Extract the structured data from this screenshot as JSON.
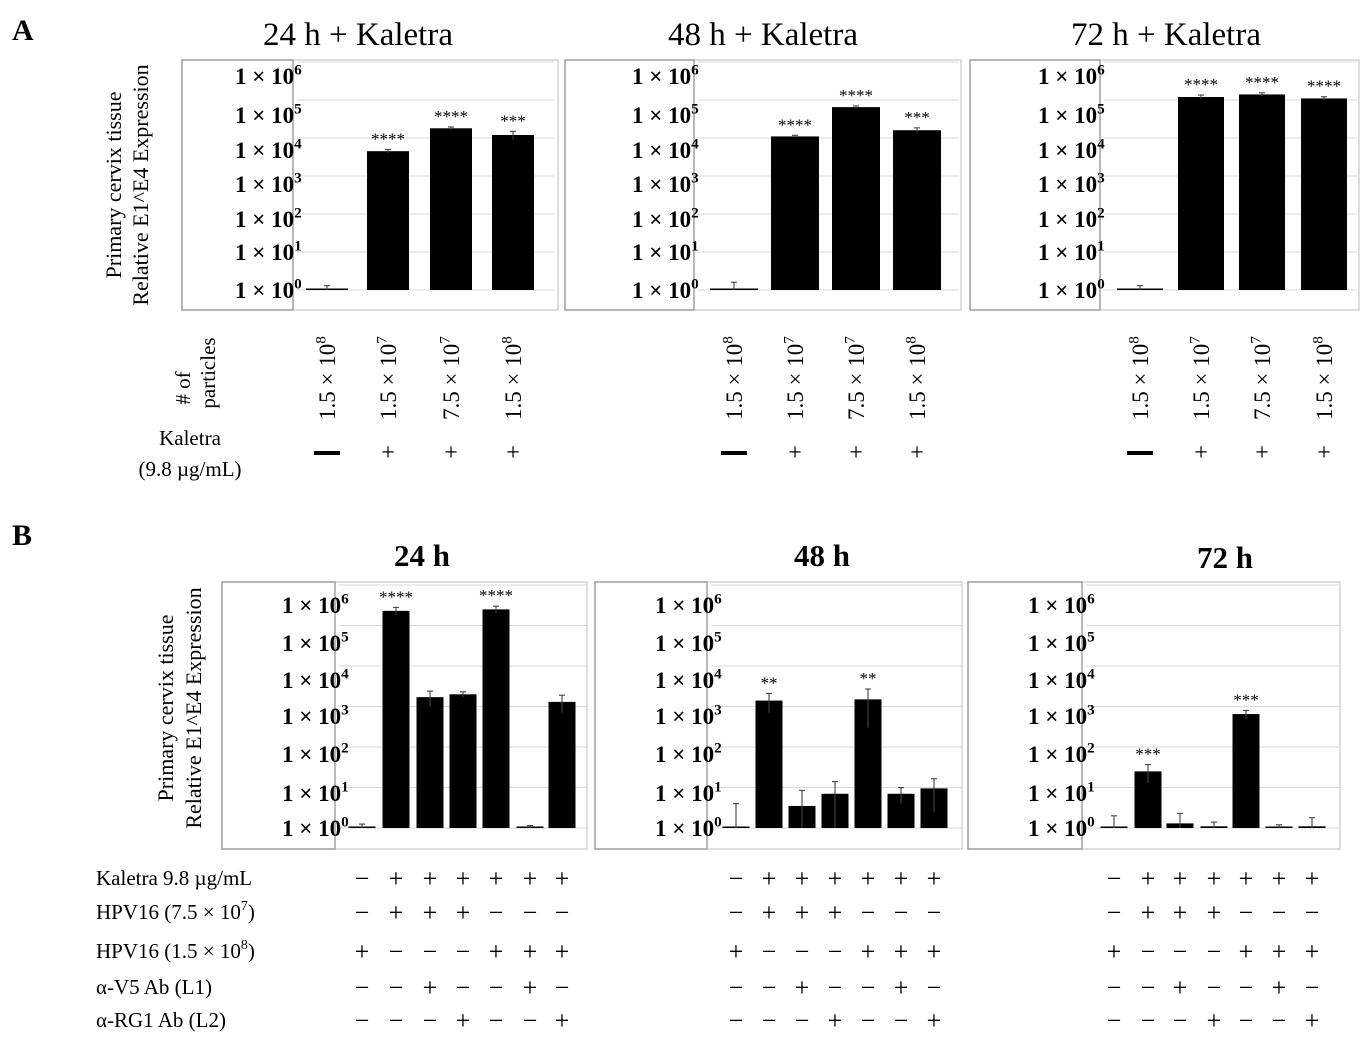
{
  "figure": {
    "panel_a_letter": "A",
    "panel_b_letter": "B",
    "ylabel_line1": "Primary cervix tissue",
    "ylabel_line2": "Relative E1^E4 Expression",
    "y_ticks": [
      {
        "base": "1 × 10",
        "exp": "6"
      },
      {
        "base": "1 × 10",
        "exp": "5"
      },
      {
        "base": "1 × 10",
        "exp": "4"
      },
      {
        "base": "1 × 10",
        "exp": "3"
      },
      {
        "base": "1 × 10",
        "exp": "2"
      },
      {
        "base": "1 × 10",
        "exp": "1"
      },
      {
        "base": "1 × 10",
        "exp": "0"
      }
    ],
    "panel_a_rows": {
      "particles_label_line1": "# of",
      "particles_label_line2": "particles",
      "kaletra_label_line1": "Kaletra",
      "kaletra_label_line2": "(9.8 µg/mL)"
    },
    "panel_b_rows": {
      "labels": [
        {
          "text": "Kaletra  9.8 µg/mL",
          "sup": "",
          "tail": ""
        },
        {
          "text": "HPV16 (7.5 × 10",
          "sup": "7",
          "tail": ")"
        },
        {
          "text": "HPV16 (1.5 × 10",
          "sup": "8",
          "tail": ")"
        },
        {
          "text": "α-V5 Ab (L1)",
          "sup": "",
          "tail": ""
        },
        {
          "text": "α-RG1 Ab (L2)",
          "sup": "",
          "tail": ""
        }
      ],
      "signs": [
        [
          "−",
          "+",
          "+",
          "+",
          "+",
          "+",
          "+"
        ],
        [
          "−",
          "+",
          "+",
          "+",
          "−",
          "−",
          "−"
        ],
        [
          "+",
          "−",
          "−",
          "−",
          "+",
          "+",
          "+"
        ],
        [
          "−",
          "−",
          "+",
          "−",
          "−",
          "+",
          "−"
        ],
        [
          "−",
          "−",
          "−",
          "+",
          "−",
          "−",
          "+"
        ]
      ]
    }
  },
  "chart_data": [
    {
      "type": "bar",
      "panel": "A",
      "title": "24 h + Kaletra",
      "scale": "log10",
      "ylim": [
        1,
        1000000
      ],
      "ylabel": "Primary cervix tissue Relative E1^E4 Expression",
      "categories": [
        "1.5 × 10⁸",
        "1.5 × 10⁷",
        "7.5 × 10⁷",
        "1.5 × 10⁸"
      ],
      "particles_base": [
        "1.5 × 10",
        "1.5 × 10",
        "7.5 × 10",
        "1.5 × 10"
      ],
      "particles_exp": [
        "8",
        "7",
        "7",
        "8"
      ],
      "kaletra": [
        "—",
        "+",
        "+",
        "+"
      ],
      "values": [
        1,
        4500,
        18000,
        12000
      ],
      "err": [
        0.3,
        500,
        1500,
        3000
      ],
      "significance": [
        "",
        "****",
        "****",
        "***"
      ]
    },
    {
      "type": "bar",
      "panel": "A",
      "title": "48 h + Kaletra",
      "scale": "log10",
      "ylim": [
        1,
        1000000
      ],
      "ylabel": "Primary cervix tissue Relative E1^E4 Expression",
      "categories": [
        "1.5 × 10⁸",
        "1.5 × 10⁷",
        "7.5 × 10⁷",
        "1.5 × 10⁸"
      ],
      "particles_base": [
        "1.5 × 10",
        "1.5 × 10",
        "7.5 × 10",
        "1.5 × 10"
      ],
      "particles_exp": [
        "8",
        "7",
        "7",
        "8"
      ],
      "kaletra": [
        "—",
        "+",
        "+",
        "+"
      ],
      "values": [
        1,
        11000,
        65000,
        16000
      ],
      "err": [
        0.6,
        800,
        5000,
        2500
      ],
      "significance": [
        "",
        "****",
        "****",
        "***"
      ]
    },
    {
      "type": "bar",
      "panel": "A",
      "title": "72 h + Kaletra",
      "scale": "log10",
      "ylim": [
        1,
        1000000
      ],
      "ylabel": "Primary cervix tissue Relative E1^E4 Expression",
      "categories": [
        "1.5 × 10⁸",
        "1.5 × 10⁷",
        "7.5 × 10⁷",
        "1.5 × 10⁸"
      ],
      "particles_base": [
        "1.5 × 10",
        "1.5 × 10",
        "7.5 × 10",
        "1.5 × 10"
      ],
      "particles_exp": [
        "8",
        "7",
        "7",
        "8"
      ],
      "kaletra": [
        "—",
        "+",
        "+",
        "+"
      ],
      "values": [
        1,
        120000,
        140000,
        110000
      ],
      "err": [
        0.3,
        15000,
        15000,
        12000
      ],
      "significance": [
        "",
        "****",
        "****",
        "****"
      ]
    },
    {
      "type": "bar",
      "panel": "B",
      "title": "24 h",
      "scale": "log10",
      "ylim": [
        1,
        1000000
      ],
      "ylabel": "Primary cervix tissue Relative E1^E4 Expression",
      "values": [
        1,
        230000,
        1700,
        2000,
        250000,
        1,
        1300
      ],
      "err": [
        0.25,
        50000,
        700,
        300,
        50000,
        0.15,
        600
      ],
      "significance": [
        "",
        "****",
        "",
        "",
        "****",
        "",
        ""
      ]
    },
    {
      "type": "bar",
      "panel": "B",
      "title": "48 h",
      "scale": "log10",
      "ylim": [
        1,
        1000000
      ],
      "ylabel": "Primary cervix tissue Relative E1^E4 Expression",
      "values": [
        1,
        1400,
        3.5,
        7,
        1500,
        7,
        9.5
      ],
      "err": [
        3,
        700,
        5,
        7,
        1200,
        3,
        7
      ],
      "significance": [
        "",
        "**",
        "",
        "",
        "**",
        "",
        ""
      ]
    },
    {
      "type": "bar",
      "panel": "B",
      "title": "72 h",
      "scale": "log10",
      "ylim": [
        1,
        1000000
      ],
      "ylabel": "Primary cervix tissue Relative E1^E4 Expression",
      "values": [
        1,
        25,
        1.3,
        1.1,
        650,
        1,
        1.1
      ],
      "err": [
        1,
        12,
        1,
        0.3,
        150,
        0.2,
        0.7
      ],
      "significance": [
        "",
        "***",
        "",
        "",
        "***",
        "",
        ""
      ]
    }
  ]
}
